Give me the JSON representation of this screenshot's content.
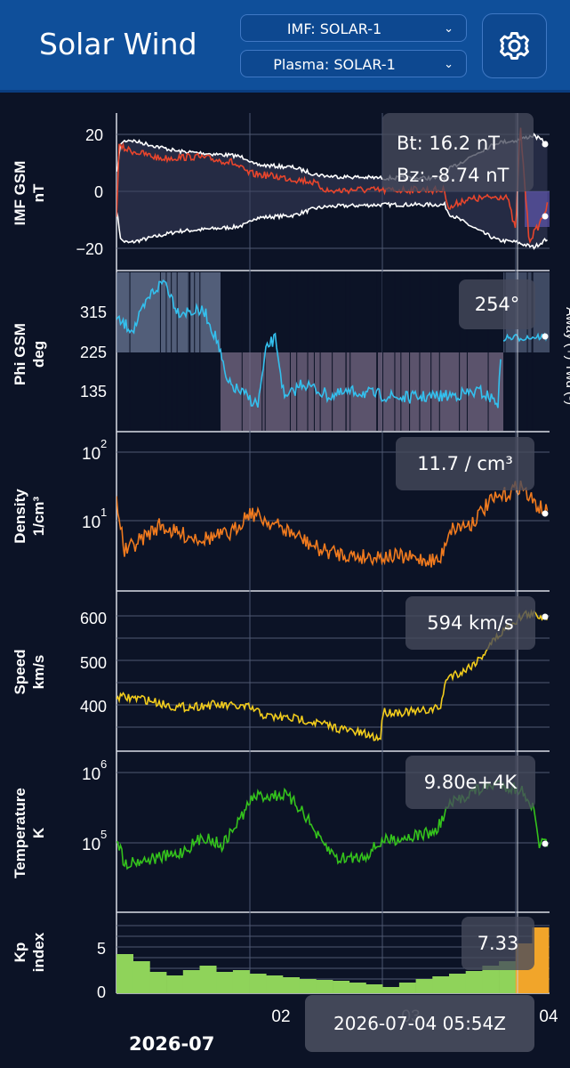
{
  "header": {
    "title": "Solar Wind",
    "imf_select": "IMF: SOLAR-1",
    "plasma_select": "Plasma: SOLAR-1"
  },
  "panels": {
    "imf": {
      "ylabel1": "IMF GSM",
      "ylabel2": "nT",
      "ticks": [
        "20",
        "0",
        "−20"
      ],
      "bt": "Bt: 16.2 nT",
      "bz": "Bz: -8.74 nT"
    },
    "phi": {
      "ylabel1": "Phi GSM",
      "ylabel2": "deg",
      "ticks": [
        "315",
        "225",
        "135"
      ],
      "value": "254°",
      "side_label": "Away (+)  Twd (-)"
    },
    "density": {
      "ylabel1": "Density",
      "ylabel2": "1/cm³",
      "ticks": [
        "10",
        "10"
      ],
      "tick_exps": [
        "2",
        "1"
      ],
      "value": "11.7 / cm³"
    },
    "speed": {
      "ylabel1": "Speed",
      "ylabel2": "km/s",
      "ticks": [
        "600",
        "500",
        "400"
      ],
      "value": "594 km/s"
    },
    "temperature": {
      "ylabel1": "Temperature",
      "ylabel2": "K",
      "ticks": [
        "10",
        "10"
      ],
      "tick_exps": [
        "6",
        "5"
      ],
      "value": "9.80e+4K"
    },
    "kp": {
      "ylabel1": "Kp",
      "ylabel2": "index",
      "ticks": [
        "5",
        "0"
      ],
      "value": "7.33"
    }
  },
  "xaxis": {
    "ticks": [
      "02",
      "03",
      "04"
    ],
    "month": "2026-07",
    "cursor_time": "2026-07-04 05:54Z"
  },
  "colors": {
    "header": "#0f4f9a",
    "background": "#0c1326",
    "bt": "#ffffff",
    "bz": "#e8452c",
    "phi": "#33c0ee",
    "density": "#f07a1e",
    "speed": "#f2cc1c",
    "temperature": "#34c21c",
    "kp_green": "#8fd35a",
    "kp_orange": "#f1a52a"
  }
}
